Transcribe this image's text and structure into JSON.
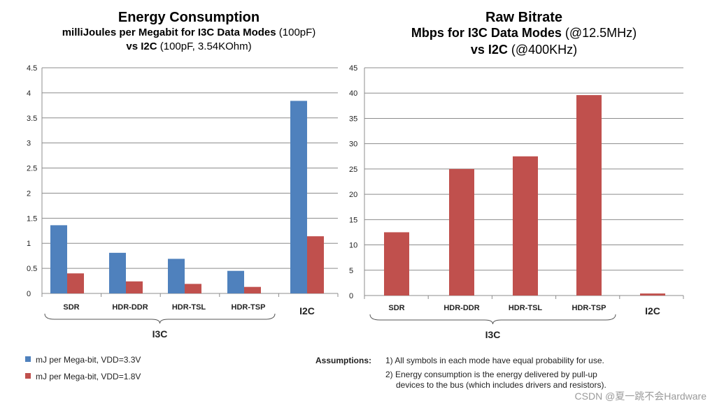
{
  "colors": {
    "blue": "#4f81bd",
    "red": "#c0504d",
    "grid": "#8c8c8c"
  },
  "chart_data": [
    {
      "type": "bar",
      "title": "Energy Consumption",
      "subtitle_line1_bold": "milliJoules per Megabit for I3C Data Modes",
      "subtitle_line1_normal": " (100pF)",
      "subtitle_line2_bold": "vs I2C",
      "subtitle_line2_normal": " (100pF, 3.54KOhm)",
      "categories": [
        "SDR",
        "HDR-DDR",
        "HDR-TSL",
        "HDR-TSP",
        "I2C"
      ],
      "category_group": "I3C",
      "series": [
        {
          "name": "mJ per Mega-bit, VDD=3.3V",
          "values": [
            1.36,
            0.81,
            0.69,
            0.45,
            3.84
          ]
        },
        {
          "name": "mJ per Mega-bit, VDD=1.8V",
          "values": [
            0.4,
            0.24,
            0.19,
            0.13,
            1.14
          ]
        }
      ],
      "ylim": [
        0,
        4.5
      ],
      "yticks": [
        "0",
        "0.5",
        "1",
        "1.5",
        "2",
        "2.5",
        "3",
        "3.5",
        "4",
        "4.5"
      ],
      "grid": true
    },
    {
      "type": "bar",
      "title": "Raw Bitrate",
      "subtitle_line1_bold": "Mbps for I3C Data Modes",
      "subtitle_line1_normal": " (@12.5MHz)",
      "subtitle_line2_bold": "vs I2C",
      "subtitle_line2_normal": " (@400KHz)",
      "categories": [
        "SDR",
        "HDR-DDR",
        "HDR-TSL",
        "HDR-TSP",
        "I2C"
      ],
      "category_group": "I3C",
      "series": [
        {
          "name": "Mbps",
          "values": [
            12.5,
            25,
            27.5,
            39.6,
            0.4
          ]
        }
      ],
      "ylim": [
        0,
        45
      ],
      "yticks": [
        "0",
        "5",
        "10",
        "15",
        "20",
        "25",
        "30",
        "35",
        "40",
        "45"
      ],
      "grid": true
    }
  ],
  "assumptions": {
    "label": "Assumptions:",
    "item1": "1) All symbols in each mode have equal probability for use.",
    "item2_line1": "2) Energy consumption is the energy delivered by pull-up",
    "item2_line2": "devices to the bus (which includes drivers and resistors)."
  },
  "watermark": "CSDN @夏一跳不会Hardware"
}
